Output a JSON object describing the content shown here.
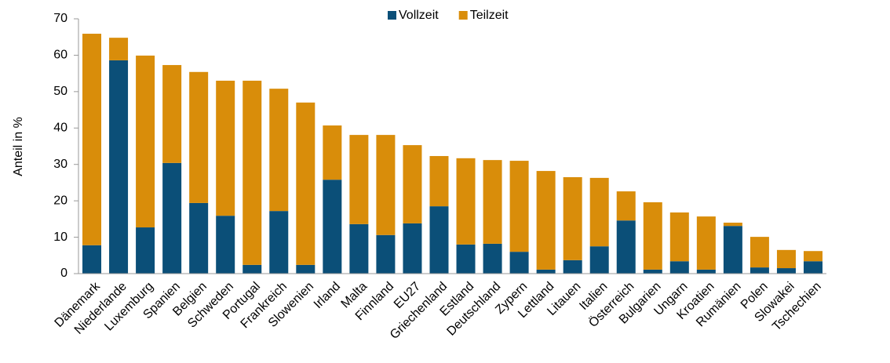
{
  "chart_data": {
    "type": "stacked_bar",
    "ylabel": "Anteil in %",
    "categories": [
      "Dänemark",
      "Niederlande",
      "Luxemburg",
      "Spanien",
      "Belgien",
      "Schweden",
      "Portugal",
      "Frankreich",
      "Slowenien",
      "Irland",
      "Malta",
      "Finnland",
      "EU27",
      "Griechenland",
      "Estland",
      "Deutschland",
      "Zypern",
      "Lettland",
      "Litauen",
      "Italien",
      "Österreich",
      "Bulgarien",
      "Ungarn",
      "Kroatien",
      "Rumänien",
      "Polen",
      "Slowakei",
      "Tschechien"
    ],
    "series": [
      {
        "name": "Vollzeit",
        "color": "#0b4f78",
        "values": [
          7.8,
          58.6,
          12.7,
          30.4,
          19.4,
          15.9,
          2.4,
          17.2,
          2.4,
          25.8,
          13.6,
          10.6,
          13.8,
          18.5,
          8.0,
          8.2,
          6.0,
          1.1,
          3.7,
          7.5,
          14.6,
          1.1,
          3.4,
          1.1,
          13.1,
          1.7,
          1.5,
          3.4
        ]
      },
      {
        "name": "Teilzeit",
        "color": "#d98d0a",
        "values": [
          58.1,
          6.2,
          47.2,
          26.9,
          36.0,
          37.1,
          50.6,
          33.6,
          44.6,
          14.9,
          24.5,
          27.5,
          21.5,
          13.8,
          23.7,
          23.0,
          25.0,
          27.1,
          22.8,
          18.8,
          8.0,
          18.5,
          13.4,
          14.6,
          0.9,
          8.4,
          5.0,
          2.8
        ]
      }
    ],
    "ylim": [
      0,
      70
    ],
    "yticks": [
      0,
      10,
      20,
      30,
      40,
      50,
      60,
      70
    ],
    "grid": false,
    "legend": "top"
  }
}
